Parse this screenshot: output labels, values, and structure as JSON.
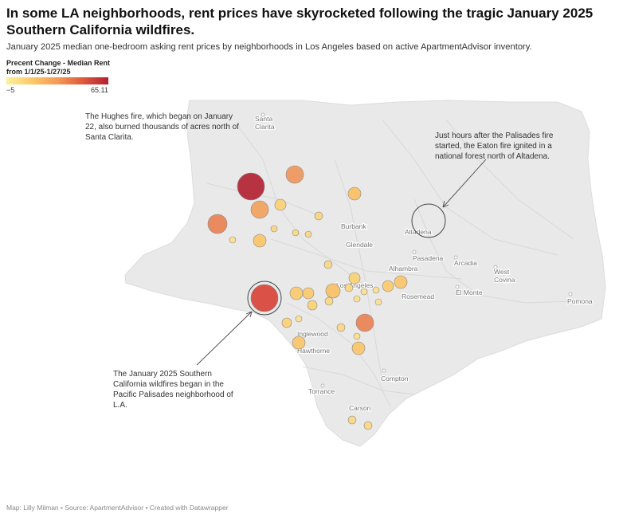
{
  "header": {
    "title": "In some LA neighborhoods, rent prices have skyrocketed following the tragic January 2025 Southern California wildfires.",
    "subtitle": "January 2025 median one-bedroom asking rent prices by neighborhoods in Los Angeles based on active ApartmentAdvisor inventory."
  },
  "legend": {
    "title_line1": "Precent Change - Median Rent",
    "title_line2": "from 1/1/25-1/27/25",
    "min": "−5",
    "max": "65.11",
    "color_low": "#ffef9a",
    "color_high": "#b31f2f"
  },
  "annotations": {
    "hughes": "The Hughes fire, which began on January 22, also burned thousands of acres north of Santa Clarita.",
    "eaton": "Just hours after the Palisades fire started, the Eaton fire ignited in a national forest north of Altadena.",
    "palisades": "The January 2025 Southern California wildfires began in the Pacific Palisades neighborhood of L.A."
  },
  "map": {
    "land_color": "#e9e9e9",
    "cities": [
      {
        "name": "Santa Clarita",
        "line1": "Santa",
        "line2": "Clarita"
      },
      {
        "name": "Burbank"
      },
      {
        "name": "Glendale"
      },
      {
        "name": "Altadena"
      },
      {
        "name": "Pasadena"
      },
      {
        "name": "Arcadia"
      },
      {
        "name": "Alhambra"
      },
      {
        "name": "West Covina",
        "line1": "West",
        "line2": "Covina"
      },
      {
        "name": "Los Angeles"
      },
      {
        "name": "El Monte"
      },
      {
        "name": "Rosemead"
      },
      {
        "name": "Pomona"
      },
      {
        "name": "Inglewood"
      },
      {
        "name": "Hawthorne"
      },
      {
        "name": "Compton"
      },
      {
        "name": "Torrance"
      },
      {
        "name": "Carson"
      }
    ],
    "fire_markers": [
      {
        "name": "Eaton fire"
      },
      {
        "name": "Palisades fire"
      }
    ]
  },
  "footer": {
    "credit": "Map: Lilly Milman • Source: ApartmentAdvisor • Created with Datawrapper"
  }
}
